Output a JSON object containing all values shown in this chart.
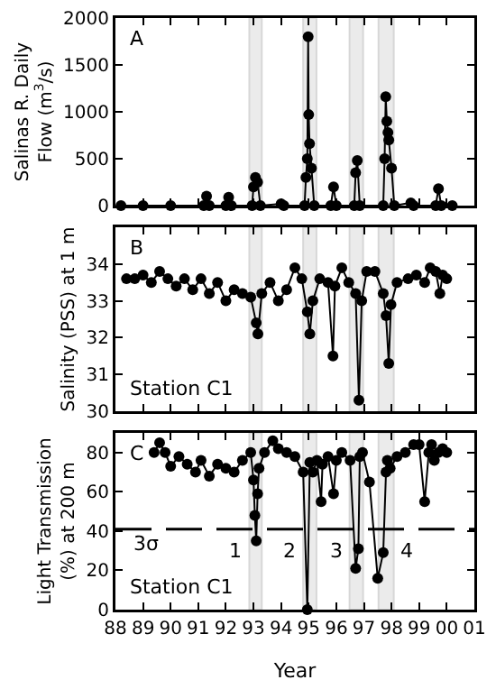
{
  "chart_data": [
    {
      "type": "line",
      "ylabel": "Salinas R. Daily Flow (m$^{3}$/s)",
      "annotations": [
        "A"
      ],
      "marker": "circle",
      "line_style": "solid",
      "tick_labels": "y",
      "xlim": [
        1988,
        2001
      ],
      "xticks": [
        {
          "value": 1988,
          "label": null
        },
        {
          "value": 1989,
          "label": null
        },
        {
          "value": 1990,
          "label": null
        },
        {
          "value": 1991,
          "label": null
        },
        {
          "value": 1992,
          "label": null
        },
        {
          "value": 1993,
          "label": null
        },
        {
          "value": 1994,
          "label": null
        },
        {
          "value": 1995,
          "label": null
        },
        {
          "value": 1996,
          "label": null
        },
        {
          "value": 1997,
          "label": null
        },
        {
          "value": 1998,
          "label": null
        },
        {
          "value": 1999,
          "label": null
        },
        {
          "value": 2000,
          "label": null
        },
        {
          "value": 2001,
          "label": null
        }
      ],
      "ylim": [
        0,
        2000
      ],
      "yticks": [
        0,
        500,
        1000,
        1500,
        2000
      ],
      "bands": [
        {
          "axis": "x",
          "from": 1992.85,
          "to": 1993.3,
          "color": "#d9d9d9"
        },
        {
          "axis": "x",
          "from": 1994.8,
          "to": 1995.28,
          "color": "#d9d9d9"
        },
        {
          "axis": "x",
          "from": 1996.48,
          "to": 1996.97,
          "color": "#d9d9d9"
        },
        {
          "axis": "x",
          "from": 1997.53,
          "to": 1998.08,
          "color": "#d9d9d9"
        }
      ],
      "series": [
        {
          "color": "#000000",
          "x": [
            1988.2,
            1989,
            1990,
            1991.2,
            1991.3,
            1991.4,
            1992.0,
            1992.1,
            1992.2,
            1992.95,
            1993.0,
            1993.07,
            1993.15,
            1993.25,
            1994.0,
            1994.1,
            1994.85,
            1994.9,
            1994.95,
            1994.98,
            1995.0,
            1995.03,
            1995.1,
            1995.2,
            1995.8,
            1995.9,
            1996.0,
            1996.65,
            1996.7,
            1996.76,
            1996.85,
            1997.7,
            1997.75,
            1997.79,
            1997.83,
            1997.87,
            1997.9,
            1998.0,
            1998.1,
            1998.7,
            1998.8,
            1999.6,
            1999.7,
            1999.8,
            2000.2
          ],
          "values": [
            0,
            0,
            0,
            0,
            100,
            0,
            0,
            90,
            0,
            0,
            200,
            300,
            250,
            0,
            20,
            0,
            0,
            300,
            500,
            1800,
            970,
            660,
            400,
            0,
            0,
            200,
            0,
            0,
            350,
            480,
            0,
            0,
            500,
            1160,
            900,
            780,
            700,
            400,
            0,
            30,
            0,
            0,
            180,
            0,
            0
          ]
        }
      ]
    },
    {
      "type": "line",
      "ylabel": "Salinity (PSS) at 1 m",
      "annotations": [
        "B",
        "Station C1"
      ],
      "marker": "circle",
      "line_style": "solid",
      "tick_labels": "y",
      "xlim": [
        1988,
        2001
      ],
      "xticks": [
        {
          "value": 1988,
          "label": null
        },
        {
          "value": 1989,
          "label": null
        },
        {
          "value": 1990,
          "label": null
        },
        {
          "value": 1991,
          "label": null
        },
        {
          "value": 1992,
          "label": null
        },
        {
          "value": 1993,
          "label": null
        },
        {
          "value": 1994,
          "label": null
        },
        {
          "value": 1995,
          "label": null
        },
        {
          "value": 1996,
          "label": null
        },
        {
          "value": 1997,
          "label": null
        },
        {
          "value": 1998,
          "label": null
        },
        {
          "value": 1999,
          "label": null
        },
        {
          "value": 2000,
          "label": null
        },
        {
          "value": 2001,
          "label": null
        }
      ],
      "ylim": [
        30,
        35
      ],
      "yticks": [
        30,
        31,
        32,
        33,
        34
      ],
      "bands": [
        {
          "axis": "x",
          "from": 1992.85,
          "to": 1993.3,
          "color": "#d9d9d9"
        },
        {
          "axis": "x",
          "from": 1994.8,
          "to": 1995.28,
          "color": "#d9d9d9"
        },
        {
          "axis": "x",
          "from": 1996.48,
          "to": 1996.97,
          "color": "#d9d9d9"
        },
        {
          "axis": "x",
          "from": 1997.53,
          "to": 1998.08,
          "color": "#d9d9d9"
        }
      ],
      "series": [
        {
          "color": "#000000",
          "x": [
            1988.4,
            1988.7,
            1989.0,
            1989.3,
            1989.6,
            1989.9,
            1990.2,
            1990.5,
            1990.8,
            1991.1,
            1991.4,
            1991.7,
            1992.0,
            1992.3,
            1992.6,
            1992.9,
            1993.1,
            1993.16,
            1993.3,
            1993.6,
            1993.9,
            1994.2,
            1994.5,
            1994.75,
            1994.95,
            1995.04,
            1995.15,
            1995.4,
            1995.7,
            1995.88,
            1995.95,
            1996.2,
            1996.45,
            1996.7,
            1996.82,
            1996.92,
            1997.1,
            1997.4,
            1997.7,
            1997.8,
            1997.9,
            1997.98,
            1998.2,
            1998.6,
            1998.9,
            1999.2,
            1999.4,
            1999.6,
            1999.75,
            1999.85,
            2000.0
          ],
          "values": [
            33.6,
            33.6,
            33.7,
            33.5,
            33.8,
            33.6,
            33.4,
            33.6,
            33.3,
            33.6,
            33.2,
            33.5,
            33.0,
            33.3,
            33.2,
            33.1,
            32.4,
            32.1,
            33.2,
            33.5,
            33.0,
            33.3,
            33.9,
            33.6,
            32.7,
            32.1,
            33.0,
            33.6,
            33.5,
            31.5,
            33.4,
            33.9,
            33.5,
            33.2,
            30.3,
            33.0,
            33.8,
            33.8,
            33.2,
            32.6,
            31.3,
            32.9,
            33.5,
            33.6,
            33.7,
            33.5,
            33.9,
            33.8,
            33.2,
            33.7,
            33.6
          ]
        }
      ]
    },
    {
      "type": "line",
      "ylabel": "Light Transmission (%) at 200 m",
      "xlabel": "Year",
      "annotations": [
        "C",
        "Station C1"
      ],
      "marker": "circle",
      "line_style": "solid",
      "xlim": [
        1988,
        2001
      ],
      "xticks": [
        {
          "value": 1988,
          "label": "88"
        },
        {
          "value": 1989,
          "label": "89"
        },
        {
          "value": 1990,
          "label": "90"
        },
        {
          "value": 1991,
          "label": "91"
        },
        {
          "value": 1992,
          "label": "92"
        },
        {
          "value": 1993,
          "label": "93"
        },
        {
          "value": 1994,
          "label": "94"
        },
        {
          "value": 1995,
          "label": "95"
        },
        {
          "value": 1996,
          "label": "96"
        },
        {
          "value": 1997,
          "label": "97"
        },
        {
          "value": 1998,
          "label": "98"
        },
        {
          "value": 1999,
          "label": "99"
        },
        {
          "value": 2000,
          "label": "00"
        },
        {
          "value": 2001,
          "label": "01"
        }
      ],
      "ylim": [
        0,
        90
      ],
      "yticks": [
        0,
        20,
        40,
        60,
        80
      ],
      "ref_lines": [
        {
          "axis": "y",
          "value": 41,
          "label": "3σ",
          "line_style": "dashed",
          "color": "#000000"
        }
      ],
      "bands": [
        {
          "axis": "x",
          "from": 1992.85,
          "to": 1993.3,
          "label": "1",
          "color": "#d9d9d9"
        },
        {
          "axis": "x",
          "from": 1994.8,
          "to": 1995.28,
          "label": "2",
          "color": "#d9d9d9"
        },
        {
          "axis": "x",
          "from": 1996.48,
          "to": 1996.97,
          "label": "3",
          "color": "#d9d9d9"
        },
        {
          "axis": "x",
          "from": 1997.53,
          "to": 1998.08,
          "label": "4",
          "color": "#d9d9d9"
        }
      ],
      "series": [
        {
          "color": "#000000",
          "x": [
            1989.4,
            1989.6,
            1989.8,
            1990.0,
            1990.3,
            1990.6,
            1990.9,
            1991.1,
            1991.4,
            1991.7,
            1992.0,
            1992.3,
            1992.6,
            1992.9,
            1993.0,
            1993.05,
            1993.1,
            1993.15,
            1993.2,
            1993.4,
            1993.7,
            1993.9,
            1994.2,
            1994.5,
            1994.8,
            1994.95,
            1995.04,
            1995.15,
            1995.3,
            1995.45,
            1995.5,
            1995.7,
            1995.9,
            1996.0,
            1996.2,
            1996.5,
            1996.7,
            1996.8,
            1996.85,
            1996.95,
            1997.2,
            1997.5,
            1997.7,
            1997.8,
            1997.85,
            1997.95,
            1998.2,
            1998.5,
            1998.8,
            1999.0,
            1999.2,
            1999.35,
            1999.45,
            1999.55,
            1999.7,
            1999.85,
            2000.0
          ],
          "values": [
            80,
            85,
            80,
            73,
            78,
            74,
            70,
            76,
            68,
            74,
            72,
            70,
            76,
            80,
            66,
            48,
            35,
            59,
            72,
            80,
            86,
            82,
            80,
            78,
            70,
            0,
            75,
            70,
            76,
            55,
            74,
            78,
            59,
            76,
            80,
            76,
            21,
            31,
            78,
            80,
            65,
            16,
            29,
            70,
            76,
            72,
            78,
            80,
            84,
            84,
            55,
            80,
            84,
            76,
            80,
            82,
            80
          ]
        }
      ]
    }
  ]
}
